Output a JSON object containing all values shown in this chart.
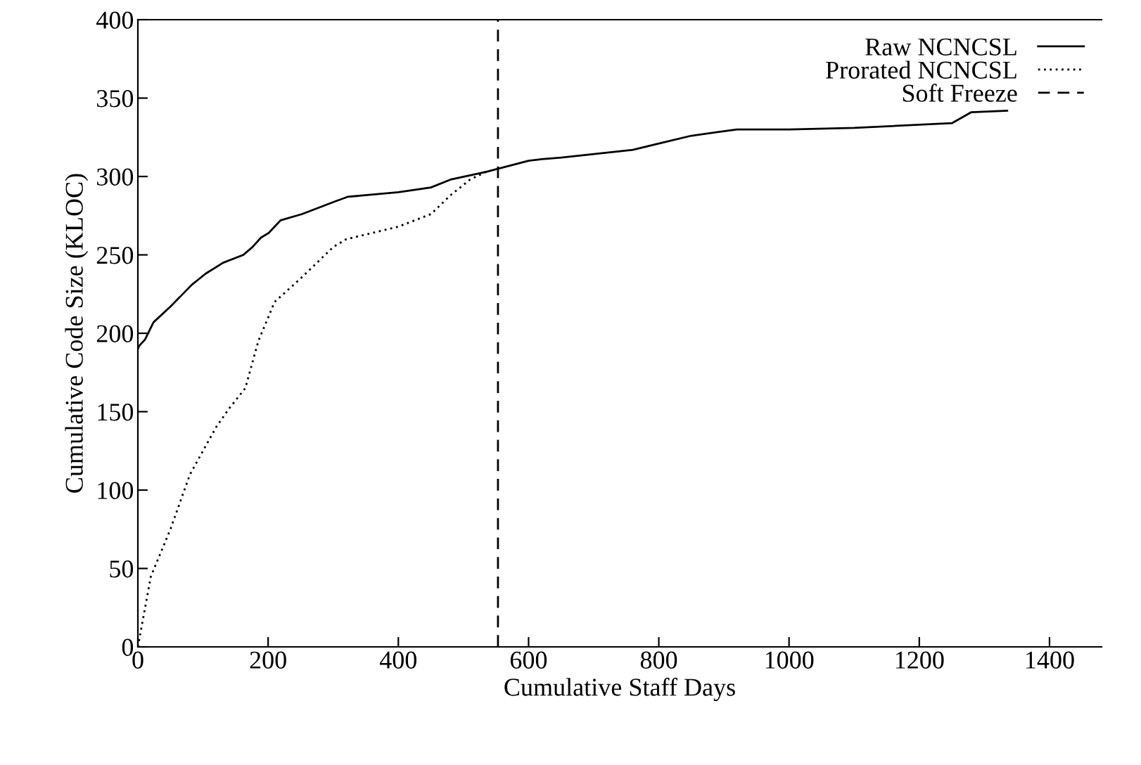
{
  "chart_data": {
    "type": "line",
    "xlabel": "Cumulative Staff Days",
    "ylabel": "Cumulative Code Size (KLOC)",
    "xlim": [
      0,
      1480
    ],
    "ylim": [
      0,
      400
    ],
    "xticks": [
      0,
      200,
      400,
      600,
      800,
      1000,
      1200,
      1400
    ],
    "yticks": [
      0,
      50,
      100,
      150,
      200,
      250,
      300,
      350,
      400
    ],
    "grid": false,
    "legend": "top right",
    "series": [
      {
        "name": "Raw NCNCSL",
        "color": "#000000",
        "line_style": "solid",
        "x": [
          0,
          2,
          11,
          24,
          50,
          83,
          104,
          131,
          162,
          176,
          189,
          201,
          219,
          252,
          302,
          322,
          400,
          450,
          480,
          535,
          600,
          620,
          650,
          760,
          800,
          850,
          920,
          1000,
          1100,
          1250,
          1280,
          1335
        ],
        "values": [
          190,
          192,
          196,
          207,
          217,
          231,
          238,
          245,
          250,
          255,
          261,
          264,
          272,
          276,
          284,
          287,
          290,
          293,
          298,
          303,
          310,
          311,
          312,
          317,
          321,
          326,
          330,
          330,
          331,
          334,
          341,
          342
        ]
      },
      {
        "name": "Prorated NCNCSL",
        "color": "#000000",
        "line_style": "dotted",
        "x": [
          0,
          20,
          50,
          80,
          120,
          140,
          165,
          185,
          210,
          250,
          300,
          320,
          400,
          450,
          480,
          510,
          535
        ],
        "values": [
          0,
          45,
          75,
          110,
          140,
          152,
          165,
          195,
          220,
          235,
          255,
          260,
          268,
          276,
          288,
          298,
          303
        ]
      },
      {
        "name": "Soft Freeze",
        "color": "#000000",
        "line_style": "dashed",
        "x": [
          553,
          553
        ],
        "values": [
          0,
          400
        ]
      }
    ]
  }
}
